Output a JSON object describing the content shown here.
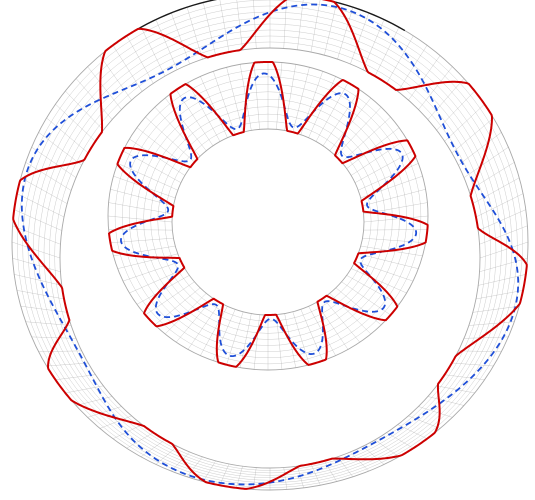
{
  "figure": {
    "description_free": true,
    "colors": {
      "background": "#ffffff",
      "mesh_line": "#9a9a9a",
      "outer_rim": "#1a1a1a",
      "solid_curve": "#cc0000",
      "dashed_curve": "#1f4fd8"
    },
    "rings": [
      {
        "id": "outer",
        "radial_lines": 96,
        "circumferential_lines": 9,
        "solid_wave_count": 8,
        "dashed_wave_count": 4
      },
      {
        "id": "inner",
        "radial_lines": 72,
        "circumferential_lines": 9,
        "solid_wave_count": 11,
        "dashed_wave_count": 11
      }
    ]
  }
}
